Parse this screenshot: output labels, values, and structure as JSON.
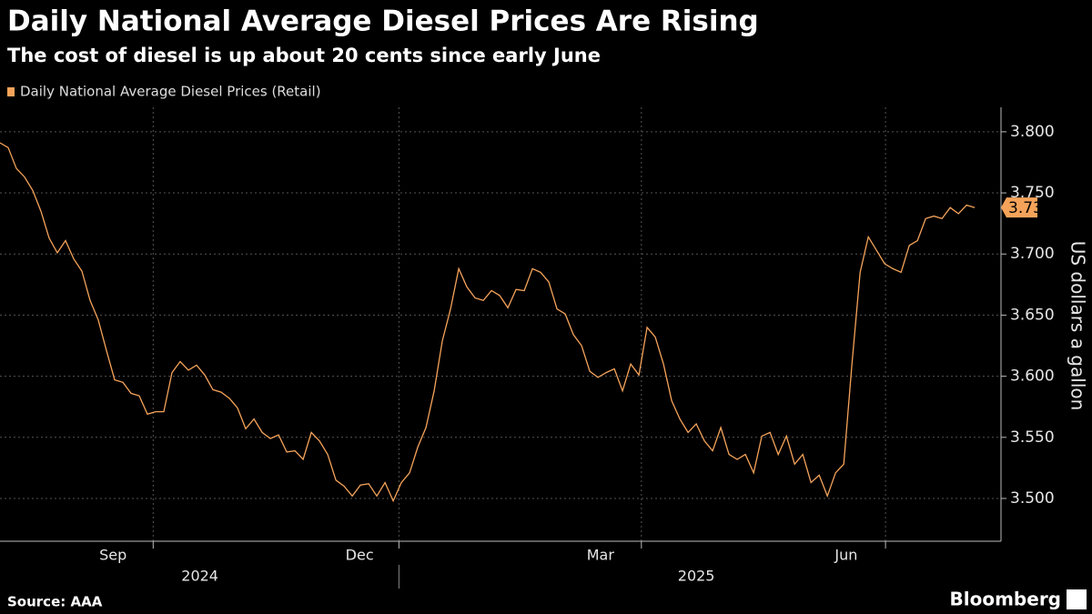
{
  "chart_data": {
    "type": "line",
    "title": "Daily National Average Diesel Prices Are Rising",
    "subtitle": "The cost of diesel is up about 20 cents since early June",
    "y_axis_label": "US dollars a gallon",
    "source": "Source: AAA",
    "brand": "Bloomberg",
    "series": [
      {
        "name": "Daily National Average Diesel Prices (Retail)",
        "color": "#f5a35a",
        "values": [
          3.791,
          3.787,
          3.77,
          3.763,
          3.752,
          3.735,
          3.713,
          3.701,
          3.711,
          3.696,
          3.686,
          3.662,
          3.646,
          3.621,
          3.597,
          3.595,
          3.586,
          3.584,
          3.569,
          3.571,
          3.571,
          3.603,
          3.612,
          3.605,
          3.609,
          3.601,
          3.589,
          3.587,
          3.582,
          3.574,
          3.557,
          3.565,
          3.554,
          3.549,
          3.552,
          3.538,
          3.539,
          3.532,
          3.554,
          3.547,
          3.536,
          3.515,
          3.51,
          3.502,
          3.511,
          3.512,
          3.502,
          3.513,
          3.498,
          3.513,
          3.521,
          3.542,
          3.558,
          3.588,
          3.629,
          3.655,
          3.688,
          3.673,
          3.664,
          3.662,
          3.67,
          3.666,
          3.656,
          3.671,
          3.67,
          3.688,
          3.685,
          3.677,
          3.655,
          3.651,
          3.634,
          3.625,
          3.604,
          3.599,
          3.603,
          3.606,
          3.588,
          3.61,
          3.601,
          3.64,
          3.632,
          3.61,
          3.58,
          3.565,
          3.554,
          3.561,
          3.547,
          3.539,
          3.558,
          3.536,
          3.532,
          3.536,
          3.521,
          3.551,
          3.554,
          3.536,
          3.551,
          3.528,
          3.536,
          3.513,
          3.519,
          3.502,
          3.521,
          3.528,
          3.61,
          3.685,
          3.714,
          3.703,
          3.692,
          3.688,
          3.685,
          3.707,
          3.711,
          3.729,
          3.731,
          3.729,
          3.738,
          3.733,
          3.74,
          3.738
        ]
      }
    ],
    "xlim": [
      0,
      122.2
    ],
    "xticks": [
      {
        "value": 13.8,
        "label": "Sep"
      },
      {
        "value": 43.9,
        "label": "Dec"
      },
      {
        "value": 73.3,
        "label": "Mar"
      },
      {
        "value": 103.3,
        "label": "Jun"
      }
    ],
    "xgrid": [
      18.7,
      48.7,
      78.3,
      108.1
    ],
    "years": [
      {
        "value": 24.4,
        "label": "2024"
      },
      {
        "value": 85,
        "label": "2025"
      }
    ],
    "year_divider": 48.7,
    "ylim": [
      3.465,
      3.82
    ],
    "yticks": [
      {
        "value": 3.5,
        "label": "3.500"
      },
      {
        "value": 3.55,
        "label": "3.550"
      },
      {
        "value": 3.6,
        "label": "3.600"
      },
      {
        "value": 3.65,
        "label": "3.650"
      },
      {
        "value": 3.7,
        "label": "3.700"
      },
      {
        "value": 3.75,
        "label": "3.750"
      },
      {
        "value": 3.8,
        "label": "3.800"
      }
    ],
    "grid": true
  }
}
